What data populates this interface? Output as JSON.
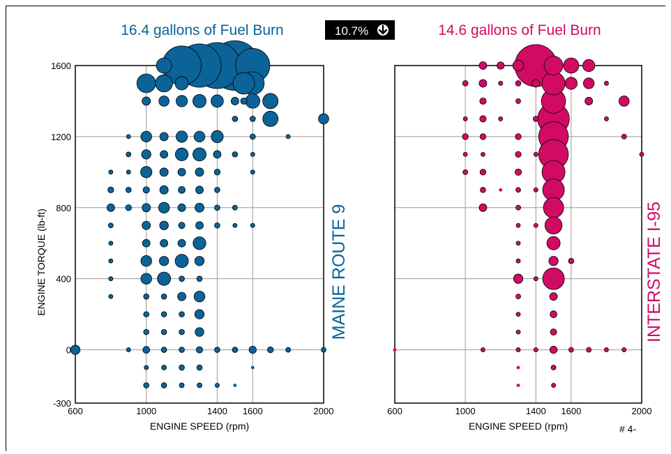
{
  "badge": {
    "text": "10.7%",
    "icon": "arrow-down-icon",
    "bg": "#000000"
  },
  "page_note": "# 4-",
  "colors": {
    "left": "#0b6398",
    "right": "#d10b64",
    "grid": "#999999"
  },
  "chart_data": [
    {
      "type": "scatter",
      "title": "16.4 gallons of Fuel Burn",
      "side_label": "MAINE ROUTE 9",
      "xlabel": "ENGINE SPEED (rpm)",
      "ylabel": "ENGINE TORQUE (lb-ft)",
      "xlim": [
        600,
        2000
      ],
      "ylim": [
        -300,
        1600
      ],
      "x_ticks": [
        "600",
        "1000",
        "1400",
        "1600",
        "2000"
      ],
      "y_ticks": [
        "-300",
        "0",
        "400",
        "800",
        "1200",
        "1600"
      ],
      "grid": true,
      "points": [
        [
          1500,
          1600,
          42
        ],
        [
          1400,
          1600,
          36
        ],
        [
          1300,
          1600,
          32
        ],
        [
          1200,
          1600,
          26
        ],
        [
          1600,
          1600,
          20
        ],
        [
          1100,
          1600,
          4
        ],
        [
          1000,
          1500,
          6
        ],
        [
          1100,
          1500,
          5
        ],
        [
          1200,
          1500,
          3
        ],
        [
          1550,
          1500,
          8
        ],
        [
          1600,
          1500,
          9
        ],
        [
          1000,
          1400,
          1.2
        ],
        [
          1100,
          1400,
          1.8
        ],
        [
          1200,
          1400,
          2.2
        ],
        [
          1300,
          1400,
          3
        ],
        [
          1400,
          1400,
          2.6
        ],
        [
          1500,
          1400,
          1
        ],
        [
          1550,
          1400,
          0.7
        ],
        [
          1600,
          1400,
          3.5
        ],
        [
          1700,
          1400,
          4
        ],
        [
          1700,
          1300,
          4
        ],
        [
          2000,
          1300,
          1.8
        ],
        [
          1500,
          1300,
          0.5
        ],
        [
          1600,
          1300,
          0.5
        ],
        [
          900,
          1200,
          0.3
        ],
        [
          1000,
          1200,
          2
        ],
        [
          1100,
          1200,
          1.2
        ],
        [
          1200,
          1200,
          2.2
        ],
        [
          1300,
          1200,
          2
        ],
        [
          1400,
          1200,
          2.5
        ],
        [
          1600,
          1200,
          0.5
        ],
        [
          1800,
          1200,
          0.3
        ],
        [
          900,
          1100,
          0.4
        ],
        [
          1000,
          1100,
          1.5
        ],
        [
          1100,
          1100,
          1
        ],
        [
          1200,
          1100,
          2.8
        ],
        [
          1300,
          1100,
          3
        ],
        [
          1400,
          1100,
          1
        ],
        [
          1500,
          1100,
          0.5
        ],
        [
          1600,
          1100,
          0.3
        ],
        [
          800,
          1000,
          0.3
        ],
        [
          900,
          1000,
          0.3
        ],
        [
          1000,
          1000,
          2.2
        ],
        [
          1100,
          1000,
          1.2
        ],
        [
          1200,
          1000,
          1
        ],
        [
          1300,
          1000,
          1.2
        ],
        [
          1400,
          1000,
          0.6
        ],
        [
          1600,
          1000,
          0.3
        ],
        [
          800,
          900,
          0.6
        ],
        [
          900,
          900,
          0.5
        ],
        [
          1000,
          900,
          0.7
        ],
        [
          1100,
          900,
          1.2
        ],
        [
          1200,
          900,
          0.8
        ],
        [
          1300,
          900,
          1
        ],
        [
          1400,
          900,
          0.5
        ],
        [
          800,
          800,
          1
        ],
        [
          900,
          800,
          0.6
        ],
        [
          1000,
          800,
          1.2
        ],
        [
          1100,
          800,
          2
        ],
        [
          1200,
          800,
          1
        ],
        [
          1300,
          800,
          1.4
        ],
        [
          1400,
          800,
          0.5
        ],
        [
          1500,
          800,
          0.4
        ],
        [
          800,
          700,
          0.4
        ],
        [
          1000,
          700,
          1.2
        ],
        [
          1100,
          700,
          1.3
        ],
        [
          1200,
          700,
          0.7
        ],
        [
          1300,
          700,
          1
        ],
        [
          1400,
          700,
          0.5
        ],
        [
          1500,
          700,
          0.3
        ],
        [
          1600,
          700,
          0.3
        ],
        [
          800,
          600,
          0.3
        ],
        [
          1000,
          600,
          1
        ],
        [
          1100,
          600,
          1
        ],
        [
          1200,
          600,
          1
        ],
        [
          1300,
          600,
          2.8
        ],
        [
          800,
          500,
          0.3
        ],
        [
          1000,
          500,
          2
        ],
        [
          1100,
          500,
          1.5
        ],
        [
          1200,
          500,
          3
        ],
        [
          1300,
          500,
          1.5
        ],
        [
          800,
          400,
          0.3
        ],
        [
          1000,
          400,
          2
        ],
        [
          1100,
          400,
          3
        ],
        [
          1200,
          400,
          0.5
        ],
        [
          1300,
          400,
          0.5
        ],
        [
          800,
          300,
          0.3
        ],
        [
          1000,
          300,
          0.5
        ],
        [
          1100,
          300,
          0.5
        ],
        [
          1200,
          300,
          1.2
        ],
        [
          1300,
          300,
          2
        ],
        [
          1000,
          200,
          0.5
        ],
        [
          1100,
          200,
          0.5
        ],
        [
          1200,
          200,
          0.5
        ],
        [
          1300,
          200,
          1.5
        ],
        [
          1000,
          100,
          0.5
        ],
        [
          1100,
          100,
          0.5
        ],
        [
          1200,
          100,
          0.5
        ],
        [
          1300,
          100,
          1.3
        ],
        [
          600,
          0,
          1.5
        ],
        [
          900,
          0,
          0.3
        ],
        [
          1000,
          0,
          0.8
        ],
        [
          1100,
          0,
          0.5
        ],
        [
          1200,
          0,
          0.5
        ],
        [
          1300,
          0,
          0.7
        ],
        [
          1400,
          0,
          0.5
        ],
        [
          1500,
          0,
          0.5
        ],
        [
          1600,
          0,
          0.9
        ],
        [
          1700,
          0,
          0.6
        ],
        [
          1800,
          0,
          0.4
        ],
        [
          2000,
          0,
          0.4
        ],
        [
          1000,
          -100,
          0.3
        ],
        [
          1100,
          -100,
          0.4
        ],
        [
          1200,
          -100,
          0.5
        ],
        [
          1300,
          -100,
          0.5
        ],
        [
          1600,
          -100,
          0.2
        ],
        [
          1000,
          -200,
          0.5
        ],
        [
          1100,
          -200,
          0.5
        ],
        [
          1200,
          -200,
          0.4
        ],
        [
          1300,
          -200,
          0.4
        ],
        [
          1400,
          -200,
          0.3
        ],
        [
          1500,
          -200,
          0.2
        ]
      ]
    },
    {
      "type": "scatter",
      "title": "14.6 gallons of Fuel Burn",
      "side_label": "INTERSTATE I-95",
      "xlabel": "ENGINE SPEED (rpm)",
      "ylabel": "",
      "xlim": [
        600,
        2000
      ],
      "ylim": [
        -300,
        1600
      ],
      "x_ticks": [
        "600",
        "1000",
        "1400",
        "1600",
        "2000"
      ],
      "y_ticks": [],
      "grid": true,
      "points": [
        [
          1400,
          1600,
          30
        ],
        [
          1300,
          1600,
          2
        ],
        [
          1100,
          1600,
          1
        ],
        [
          1200,
          1600,
          0.9
        ],
        [
          1500,
          1600,
          6
        ],
        [
          1600,
          1600,
          4
        ],
        [
          1700,
          1600,
          2.5
        ],
        [
          1500,
          1500,
          9
        ],
        [
          1000,
          1500,
          0.5
        ],
        [
          1100,
          1500,
          1
        ],
        [
          1200,
          1500,
          0.3
        ],
        [
          1300,
          1500,
          0.5
        ],
        [
          1400,
          1500,
          1
        ],
        [
          1600,
          1500,
          2.5
        ],
        [
          1700,
          1500,
          2
        ],
        [
          1800,
          1500,
          0.3
        ],
        [
          1500,
          1400,
          10
        ],
        [
          1100,
          1400,
          0.7
        ],
        [
          1300,
          1400,
          0.4
        ],
        [
          1700,
          1400,
          1
        ],
        [
          1900,
          1400,
          1.8
        ],
        [
          1500,
          1300,
          17
        ],
        [
          1000,
          1300,
          0.3
        ],
        [
          1100,
          1300,
          0.7
        ],
        [
          1200,
          1300,
          0.3
        ],
        [
          1400,
          1300,
          0.5
        ],
        [
          1800,
          1300,
          0.3
        ],
        [
          1500,
          1200,
          15
        ],
        [
          1000,
          1200,
          0.6
        ],
        [
          1100,
          1200,
          0.6
        ],
        [
          1300,
          1200,
          0.6
        ],
        [
          1900,
          1200,
          0.4
        ],
        [
          1500,
          1100,
          15
        ],
        [
          1000,
          1100,
          0.3
        ],
        [
          1100,
          1100,
          0.3
        ],
        [
          1300,
          1100,
          0.6
        ],
        [
          1400,
          1100,
          0.3
        ],
        [
          2000,
          1100,
          0.3
        ],
        [
          1500,
          1000,
          9
        ],
        [
          1000,
          1000,
          0.4
        ],
        [
          1100,
          1000,
          0.6
        ],
        [
          1300,
          1000,
          0.7
        ],
        [
          1500,
          900,
          8
        ],
        [
          1100,
          900,
          0.5
        ],
        [
          1200,
          900,
          0.2
        ],
        [
          1300,
          900,
          0.4
        ],
        [
          1400,
          900,
          0.3
        ],
        [
          1500,
          800,
          7
        ],
        [
          1100,
          800,
          1
        ],
        [
          1300,
          800,
          0.4
        ],
        [
          1500,
          700,
          5
        ],
        [
          1300,
          700,
          0.3
        ],
        [
          1400,
          700,
          0.3
        ],
        [
          1500,
          600,
          3
        ],
        [
          1300,
          600,
          0.3
        ],
        [
          1500,
          500,
          1.5
        ],
        [
          1300,
          500,
          0.3
        ],
        [
          1600,
          500,
          0.5
        ],
        [
          1500,
          400,
          8
        ],
        [
          1300,
          400,
          1.5
        ],
        [
          1400,
          400,
          0.3
        ],
        [
          1500,
          300,
          1
        ],
        [
          1300,
          300,
          0.4
        ],
        [
          1500,
          200,
          0.8
        ],
        [
          1300,
          200,
          0.3
        ],
        [
          1500,
          100,
          0.7
        ],
        [
          1300,
          100,
          0.3
        ],
        [
          1500,
          0,
          0.9
        ],
        [
          600,
          0,
          0.2
        ],
        [
          1100,
          0,
          0.3
        ],
        [
          1300,
          0,
          0.3
        ],
        [
          1400,
          0,
          0.3
        ],
        [
          1600,
          0,
          0.4
        ],
        [
          1700,
          0,
          0.4
        ],
        [
          1800,
          0,
          0.3
        ],
        [
          1900,
          0,
          0.3
        ],
        [
          1500,
          -100,
          0.4
        ],
        [
          1300,
          -100,
          0.2
        ],
        [
          1500,
          -200,
          0.3
        ],
        [
          1300,
          -200,
          0.2
        ]
      ]
    }
  ]
}
